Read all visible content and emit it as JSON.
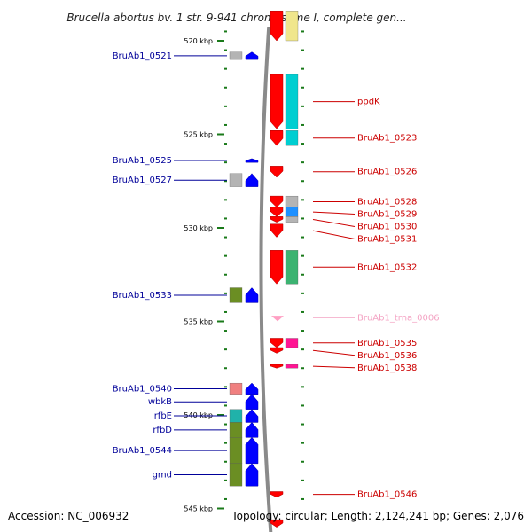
{
  "title": "Brucella abortus bv. 1 str. 9-941 chromosome I, complete gen...",
  "footer": {
    "accession": "Accession: NC_006932",
    "topology": "Topology: circular; Length: 2,124,241 bp; Genes: 2,076"
  },
  "colors": {
    "plus_strand": "#ff0000",
    "minus_strand": "#0000ff",
    "plus_label": "#cc0000",
    "minus_label": "#000099",
    "trna": "#ff9fc3",
    "trna_label": "#f4a4c4",
    "tick": "#1a7a1a",
    "backbone": "#8a8a8a"
  },
  "axis": {
    "ticks": [
      {
        "kbp": 520,
        "label": "520 kbp"
      },
      {
        "kbp": 525,
        "label": "525 kbp"
      },
      {
        "kbp": 530,
        "label": "530 kbp"
      },
      {
        "kbp": 535,
        "label": "535 kbp"
      },
      {
        "kbp": 540,
        "label": "540 kbp"
      },
      {
        "kbp": 545,
        "label": "545 kbp"
      }
    ]
  },
  "genes_minus": [
    {
      "label": "BruAb1_0521",
      "start_kbp": 520.6,
      "end_kbp": 521.0,
      "cog": "#b4b4b4"
    },
    {
      "label": "BruAb1_0525",
      "start_kbp": 526.3,
      "end_kbp": 526.5,
      "cog": ""
    },
    {
      "label": "BruAb1_0527",
      "start_kbp": 527.1,
      "end_kbp": 527.8,
      "cog": "#b4b4b4"
    },
    {
      "label": "BruAb1_0533",
      "start_kbp": 533.2,
      "end_kbp": 534.0,
      "cog": "#6b8e23"
    },
    {
      "label": "BruAb1_0540",
      "start_kbp": 538.3,
      "end_kbp": 538.9,
      "cog": "#f08080"
    },
    {
      "label": "wbkB",
      "start_kbp": 538.9,
      "end_kbp": 539.7,
      "cog": ""
    },
    {
      "label": "rfbE",
      "start_kbp": 539.7,
      "end_kbp": 540.4,
      "cog": "#20b2aa"
    },
    {
      "label": "rfbD",
      "start_kbp": 540.4,
      "end_kbp": 541.2,
      "cog": "#6b8e23"
    },
    {
      "label": "BruAb1_0544",
      "start_kbp": 541.2,
      "end_kbp": 542.6,
      "cog": "#6b8e23"
    },
    {
      "label": "gmd",
      "start_kbp": 542.6,
      "end_kbp": 543.8,
      "cog": "#6b8e23"
    }
  ],
  "genes_plus": [
    {
      "label": "",
      "start_kbp": 518.4,
      "end_kbp": 520.0,
      "cog": "#f0e68c"
    },
    {
      "label": "ppdK",
      "start_kbp": 521.8,
      "end_kbp": 524.7,
      "cog": "#00ced1"
    },
    {
      "label": "BruAb1_0523",
      "start_kbp": 524.8,
      "end_kbp": 525.6,
      "cog": "#00ced1"
    },
    {
      "label": "BruAb1_0526",
      "start_kbp": 526.7,
      "end_kbp": 527.3,
      "cog": ""
    },
    {
      "label": "BruAb1_0528",
      "start_kbp": 528.3,
      "end_kbp": 528.9,
      "cog": "#b4b4b4"
    },
    {
      "label": "BruAb1_0529",
      "start_kbp": 528.9,
      "end_kbp": 529.4,
      "cog": "#1e90ff"
    },
    {
      "label": "BruAb1_0530",
      "start_kbp": 529.4,
      "end_kbp": 529.7,
      "cog": "#b4b4b4"
    },
    {
      "label": "BruAb1_0531",
      "start_kbp": 529.8,
      "end_kbp": 530.5,
      "cog": ""
    },
    {
      "label": "BruAb1_0532",
      "start_kbp": 531.2,
      "end_kbp": 533.0,
      "cog": "#3cb371"
    },
    {
      "label": "BruAb1_0535",
      "start_kbp": 535.9,
      "end_kbp": 536.4,
      "cog": "#ff1493"
    },
    {
      "label": "BruAb1_0536",
      "start_kbp": 536.4,
      "end_kbp": 536.7,
      "cog": ""
    },
    {
      "label": "BruAb1_0538",
      "start_kbp": 537.3,
      "end_kbp": 537.5,
      "cog": "#ff1493"
    },
    {
      "label": "BruAb1_0546",
      "start_kbp": 544.1,
      "end_kbp": 544.4,
      "cog": ""
    },
    {
      "label": "",
      "start_kbp": 545.6,
      "end_kbp": 546.0,
      "cog": ""
    }
  ],
  "trna": [
    {
      "label": "BruAb1_trna_0006",
      "start_kbp": 534.7,
      "end_kbp": 534.9
    }
  ]
}
